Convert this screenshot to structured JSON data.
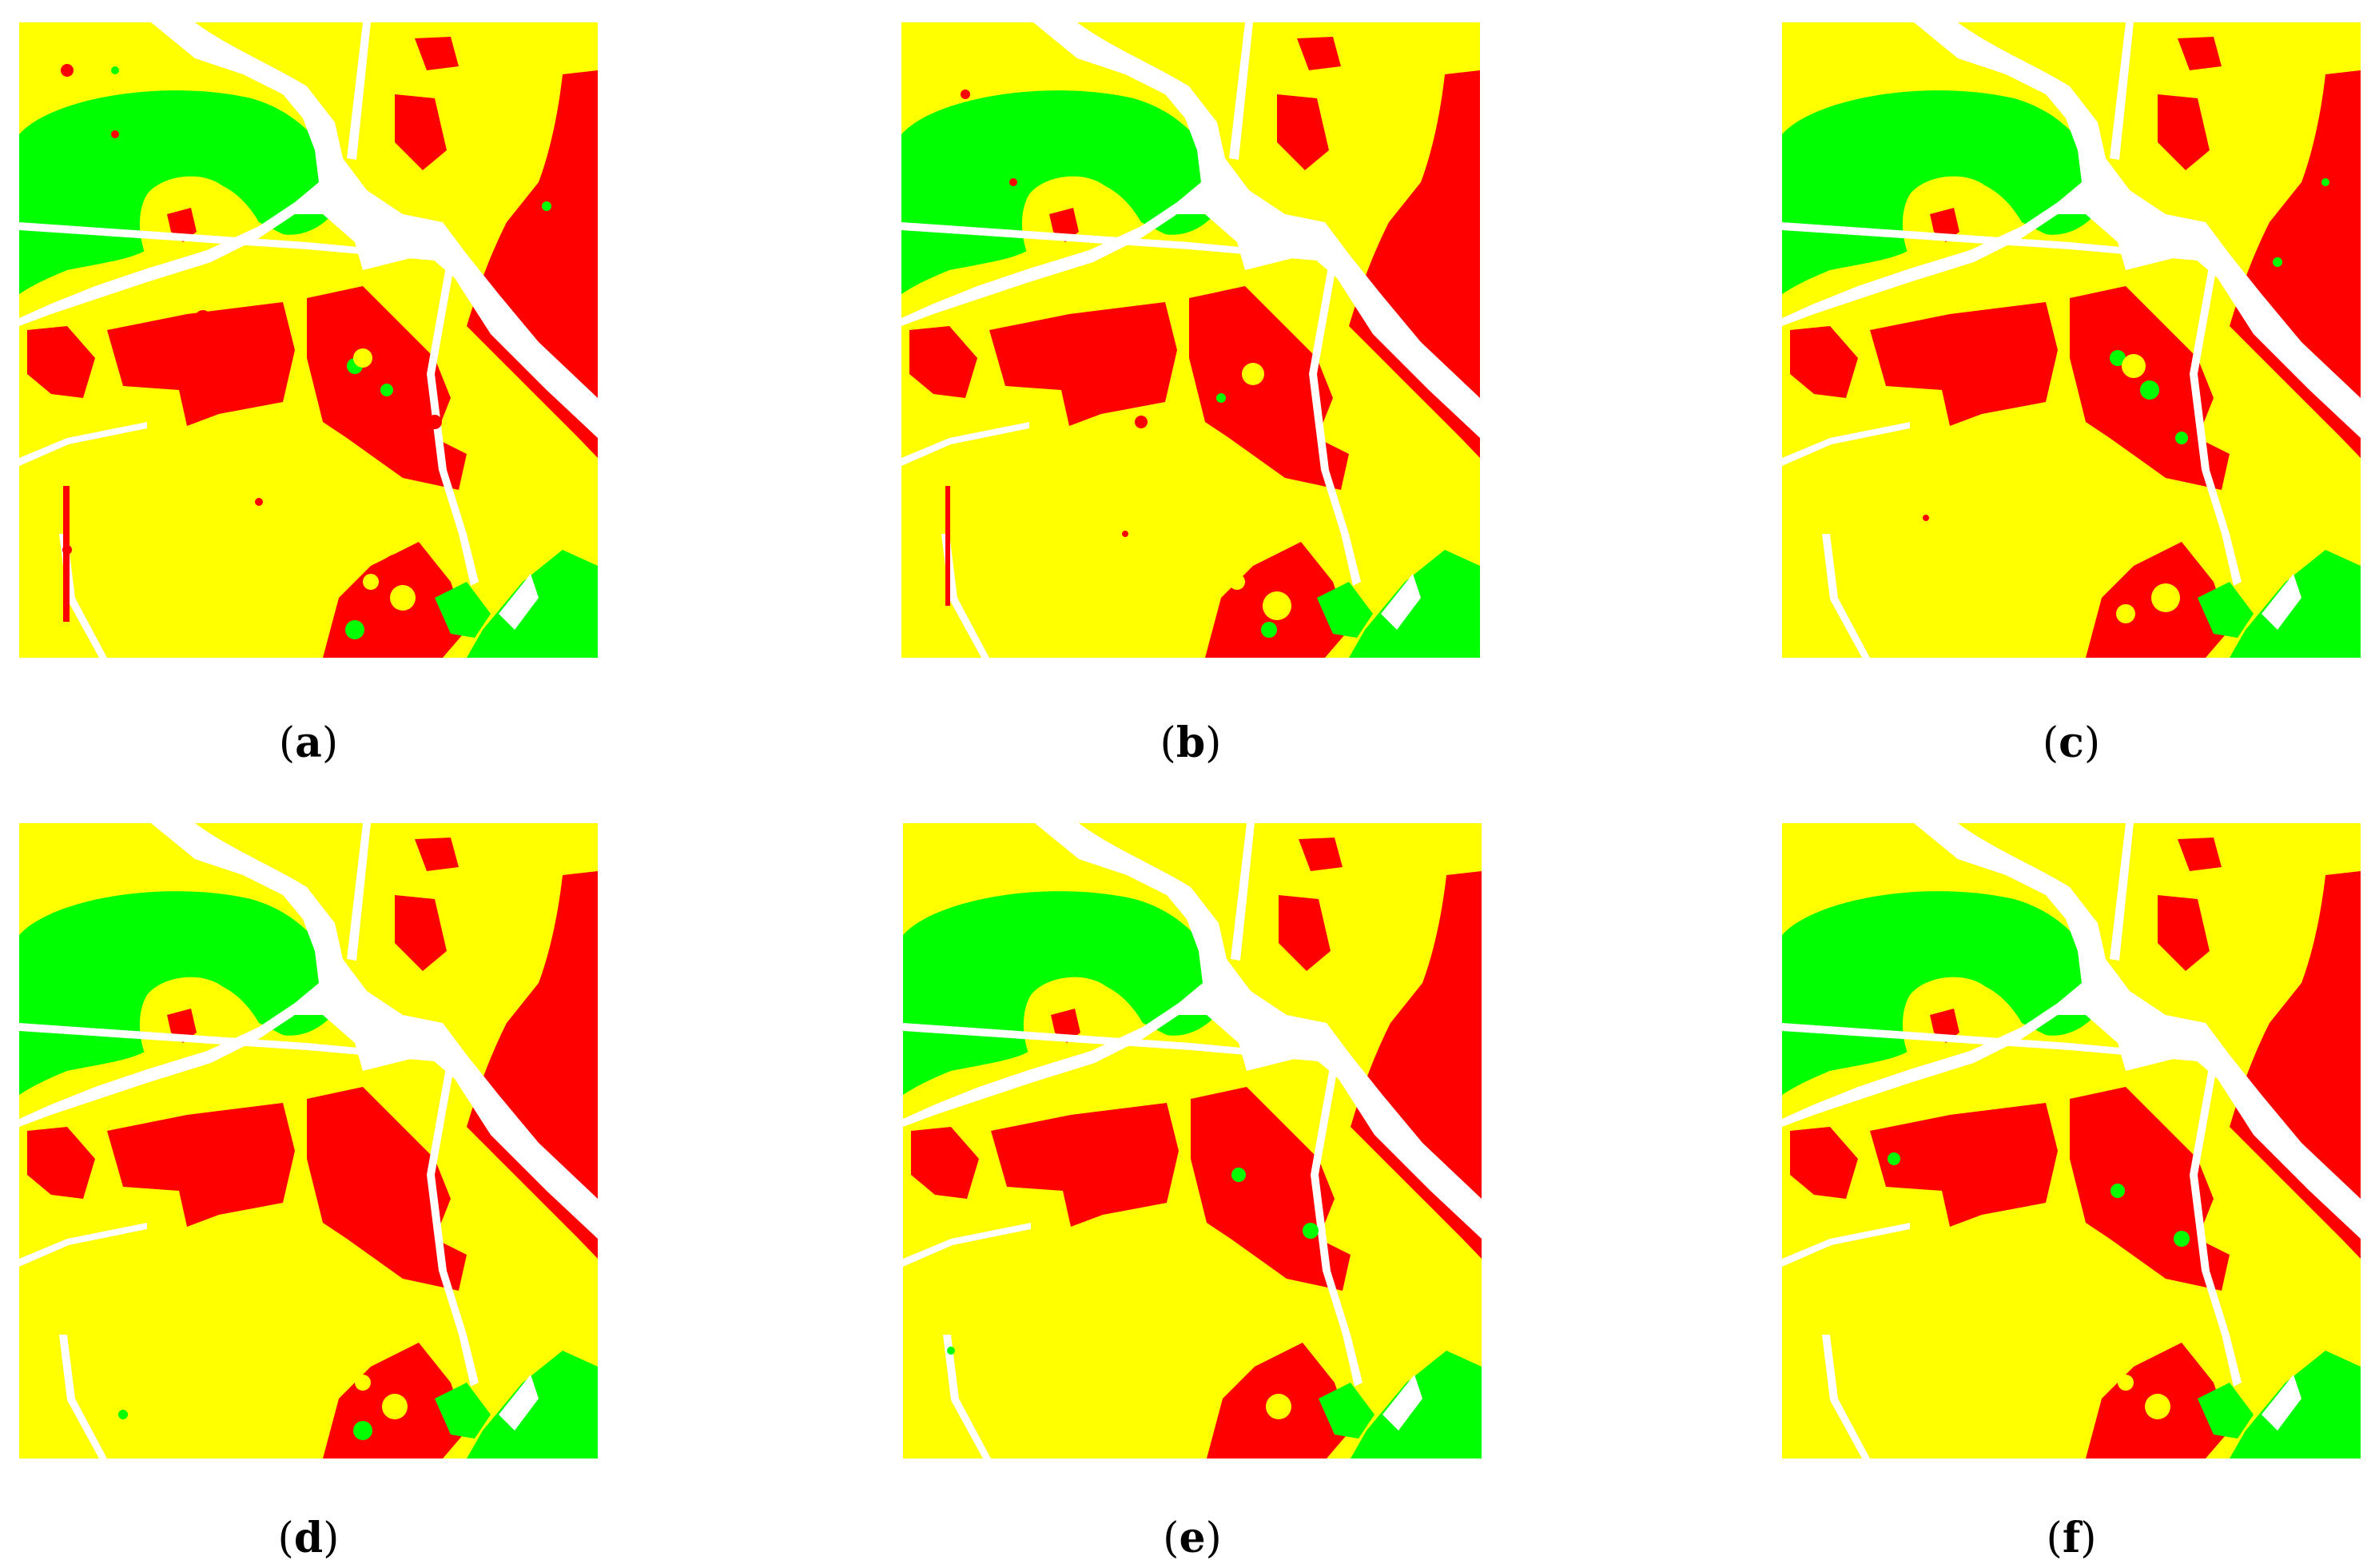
{
  "colors": {
    "red": "#ff0000",
    "yellow": "#ffff00",
    "green": "#00ff00",
    "white": "#ffffff"
  },
  "panels": [
    {
      "id": "a",
      "caption": "(a)"
    },
    {
      "id": "b",
      "caption": "(b)"
    },
    {
      "id": "c",
      "caption": "(c)"
    },
    {
      "id": "d",
      "caption": "(d)"
    },
    {
      "id": "e",
      "caption": "(e)"
    },
    {
      "id": "f",
      "caption": "(f)"
    }
  ]
}
